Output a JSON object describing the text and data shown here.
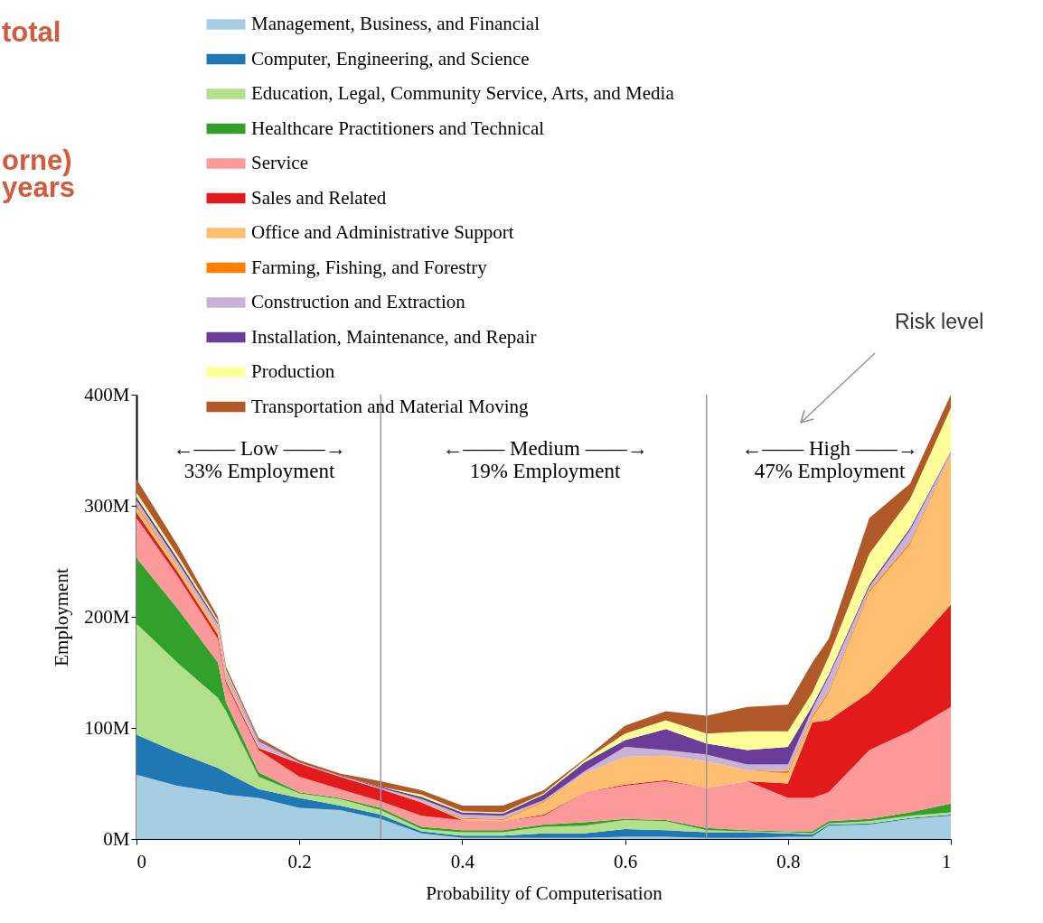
{
  "chart_data": {
    "type": "area",
    "stacked": true,
    "xlabel": "Probability of Computerisation",
    "ylabel": "Employment",
    "legend": "top",
    "x": [
      0,
      0.05,
      0.1,
      0.11,
      0.15,
      0.2,
      0.25,
      0.3,
      0.35,
      0.4,
      0.45,
      0.5,
      0.55,
      0.6,
      0.65,
      0.7,
      0.75,
      0.8,
      0.83,
      0.85,
      0.9,
      0.95,
      1
    ],
    "xlim": [
      0,
      1
    ],
    "xticks": [
      0,
      0.2,
      0.4,
      0.6,
      0.8,
      1
    ],
    "ylim": [
      0,
      400
    ],
    "yticks": [
      {
        "value": 0,
        "label": "0M"
      },
      {
        "value": 100,
        "label": "100M"
      },
      {
        "value": 200,
        "label": "200M"
      },
      {
        "value": 300,
        "label": "300M"
      },
      {
        "value": 400,
        "label": "400M"
      }
    ],
    "series": [
      {
        "name": "Management, Business, and Financial",
        "color": "#a6cee3",
        "values": [
          58,
          48,
          42,
          40,
          37,
          28,
          26,
          18,
          5,
          1,
          1,
          1,
          1,
          2,
          2,
          1,
          1,
          2,
          2,
          12,
          13,
          18,
          21
        ]
      },
      {
        "name": "Computer, Engineering, and Science",
        "color": "#1f78b4",
        "values": [
          36,
          30,
          22,
          20,
          8,
          9,
          4,
          4,
          2,
          2,
          2,
          4,
          4,
          7,
          6,
          5,
          5,
          3,
          2,
          1,
          1,
          1,
          1
        ]
      },
      {
        "name": "Education, Legal, Community Service, Arts, and Media",
        "color": "#b2df8a",
        "values": [
          100,
          81,
          63,
          55,
          11,
          4,
          6,
          4,
          2,
          3,
          3,
          6,
          7,
          8,
          8,
          2,
          1,
          1,
          1,
          1,
          2,
          2,
          2
        ]
      },
      {
        "name": "Healthcare Practitioners and Technical",
        "color": "#33a02c",
        "values": [
          59,
          49,
          32,
          8,
          4,
          1,
          1,
          2,
          2,
          2,
          2,
          2,
          3,
          1,
          1,
          2,
          1,
          1,
          2,
          2,
          2,
          3,
          8
        ]
      },
      {
        "name": "Service",
        "color": "#fb9a99",
        "values": [
          36,
          29,
          21,
          17,
          20,
          14,
          8,
          6,
          10,
          9,
          8,
          8,
          27,
          30,
          35,
          36,
          44,
          30,
          30,
          26,
          62,
          73,
          87
        ]
      },
      {
        "name": "Sales and Related",
        "color": "#e31a1c",
        "values": [
          5,
          4,
          4,
          2,
          2,
          12,
          11,
          11,
          12,
          0,
          0,
          1,
          0,
          1,
          1,
          0,
          0,
          13,
          68,
          65,
          52,
          73,
          92
        ]
      },
      {
        "name": "Office and Administrative Support",
        "color": "#fdbf6f",
        "values": [
          5,
          5,
          4,
          2,
          1,
          0,
          0,
          0,
          1,
          1,
          1,
          11,
          17,
          25,
          22,
          24,
          10,
          9,
          4,
          24,
          90,
          95,
          135
        ]
      },
      {
        "name": "Farming, Fishing, and Forestry",
        "color": "#ff7f00",
        "values": [
          2,
          1,
          1,
          1,
          0,
          0,
          0,
          0,
          0,
          1,
          1,
          1,
          0,
          0,
          0,
          0,
          0,
          2,
          2,
          2,
          2,
          2,
          1
        ]
      },
      {
        "name": "Construction and Extraction",
        "color": "#cab2d6",
        "values": [
          4,
          3,
          4,
          4,
          5,
          1,
          1,
          1,
          2,
          3,
          3,
          1,
          2,
          9,
          5,
          6,
          5,
          6,
          6,
          13,
          3,
          11,
          1
        ]
      },
      {
        "name": "Installation, Maintenance, and Repair",
        "color": "#6a3d9a",
        "values": [
          3,
          3,
          2,
          1,
          1,
          0,
          0,
          1,
          2,
          2,
          2,
          5,
          8,
          6,
          19,
          10,
          13,
          16,
          3,
          2,
          2,
          2,
          1
        ]
      },
      {
        "name": "Production",
        "color": "#ffff99",
        "values": [
          4,
          3,
          2,
          2,
          0,
          0,
          0,
          0,
          2,
          1,
          1,
          1,
          2,
          6,
          8,
          9,
          17,
          14,
          12,
          16,
          28,
          26,
          39
        ]
      },
      {
        "name": "Transportation and Material Moving",
        "color": "#b15928",
        "values": [
          12,
          9,
          3,
          3,
          2,
          2,
          2,
          5,
          4,
          5,
          6,
          3,
          1,
          7,
          8,
          16,
          22,
          24,
          27,
          16,
          32,
          14,
          12
        ]
      }
    ],
    "ref_lines": [
      {
        "axis": "x",
        "value": 0.3,
        "color": "#999999"
      },
      {
        "axis": "x",
        "value": 0.7,
        "color": "#999999"
      }
    ],
    "annotations": [
      "←—— Low ——→",
      "33% Employment",
      "←—— Medium ——→",
      "19% Employment",
      "←—— High ——→",
      "47% Employment",
      "total",
      "orne)",
      "years",
      "Risk level"
    ]
  }
}
